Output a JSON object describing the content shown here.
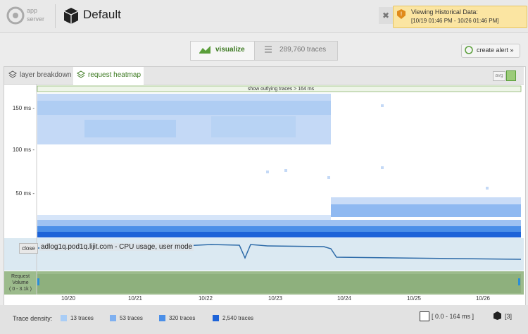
{
  "header": {
    "logo_line1": "app",
    "logo_line2": "server",
    "title": "Default"
  },
  "alert": {
    "title": "Viewing Historical Data:",
    "range": "[10/19 01:46 PM - 10/26 01:46 PM]",
    "close": "✖"
  },
  "tabs": {
    "visualize": "visualize",
    "traces": "289,760 traces"
  },
  "create_alert": "create alert »",
  "panel": {
    "tabs": [
      "layer breakdown",
      "request heatmap"
    ],
    "avg": "avg",
    "outlier_bar": "show outlying traces > 164 ms",
    "yticks": [
      "150 ms -",
      "100 ms -",
      "50 ms -"
    ],
    "overlay": {
      "close": "close",
      "label": "adlog1q.pod1q.lijit.com - CPU usage, user mode"
    },
    "volume": {
      "label_line1": "Request",
      "label_line2": "Volume",
      "range": "( 0 - 3.1k )"
    },
    "xticks": [
      "10/20",
      "10/21",
      "10/22",
      "10/23",
      "10/24",
      "10/25",
      "10/26"
    ]
  },
  "footer": {
    "density_label": "Trace density:",
    "legend": [
      {
        "label": "13 traces",
        "color": "#a9cdf6"
      },
      {
        "label": "53 traces",
        "color": "#7fb0f0"
      },
      {
        "label": "320 traces",
        "color": "#4b8fe8"
      },
      {
        "label": "2,540 traces",
        "color": "#1d63d8"
      }
    ],
    "range": "[ 0.0 - 164 ms ]",
    "count": "[3]"
  }
}
